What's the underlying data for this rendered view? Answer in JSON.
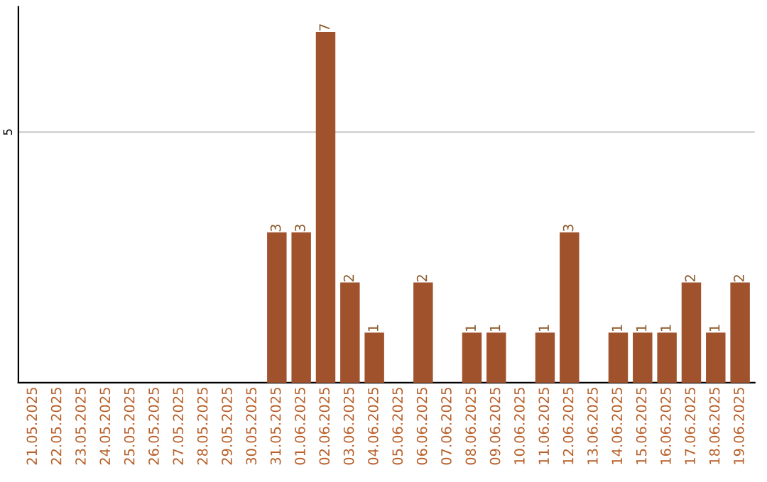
{
  "chart_data": {
    "type": "bar",
    "categories": [
      "21.05.2025",
      "22.05.2025",
      "23.05.2025",
      "24.05.2025",
      "25.05.2025",
      "26.05.2025",
      "27.05.2025",
      "28.05.2025",
      "29.05.2025",
      "30.05.2025",
      "31.05.2025",
      "01.06.2025",
      "02.06.2025",
      "03.06.2025",
      "04.06.2025",
      "05.06.2025",
      "06.06.2025",
      "07.06.2025",
      "08.06.2025",
      "09.06.2025",
      "10.06.2025",
      "11.06.2025",
      "12.06.2025",
      "13.06.2025",
      "14.06.2025",
      "15.06.2025",
      "16.06.2025",
      "17.06.2025",
      "18.06.2025",
      "19.06.2025"
    ],
    "values": [
      0,
      0,
      0,
      0,
      0,
      0,
      0,
      0,
      0,
      0,
      3,
      3,
      7,
      2,
      1,
      0,
      2,
      0,
      1,
      1,
      0,
      1,
      3,
      0,
      1,
      1,
      1,
      2,
      1,
      2
    ],
    "value_labels": [
      null,
      null,
      null,
      null,
      null,
      null,
      null,
      null,
      null,
      null,
      "3",
      "3",
      "7",
      "2",
      "1",
      null,
      "2",
      null,
      "1",
      "1",
      null,
      "1",
      "3",
      null,
      "1",
      "1",
      "1",
      "2",
      "1",
      "2"
    ],
    "color": "#a0522d",
    "ylim": [
      0,
      7.5
    ],
    "yticks": [
      5
    ],
    "grid": "y"
  }
}
